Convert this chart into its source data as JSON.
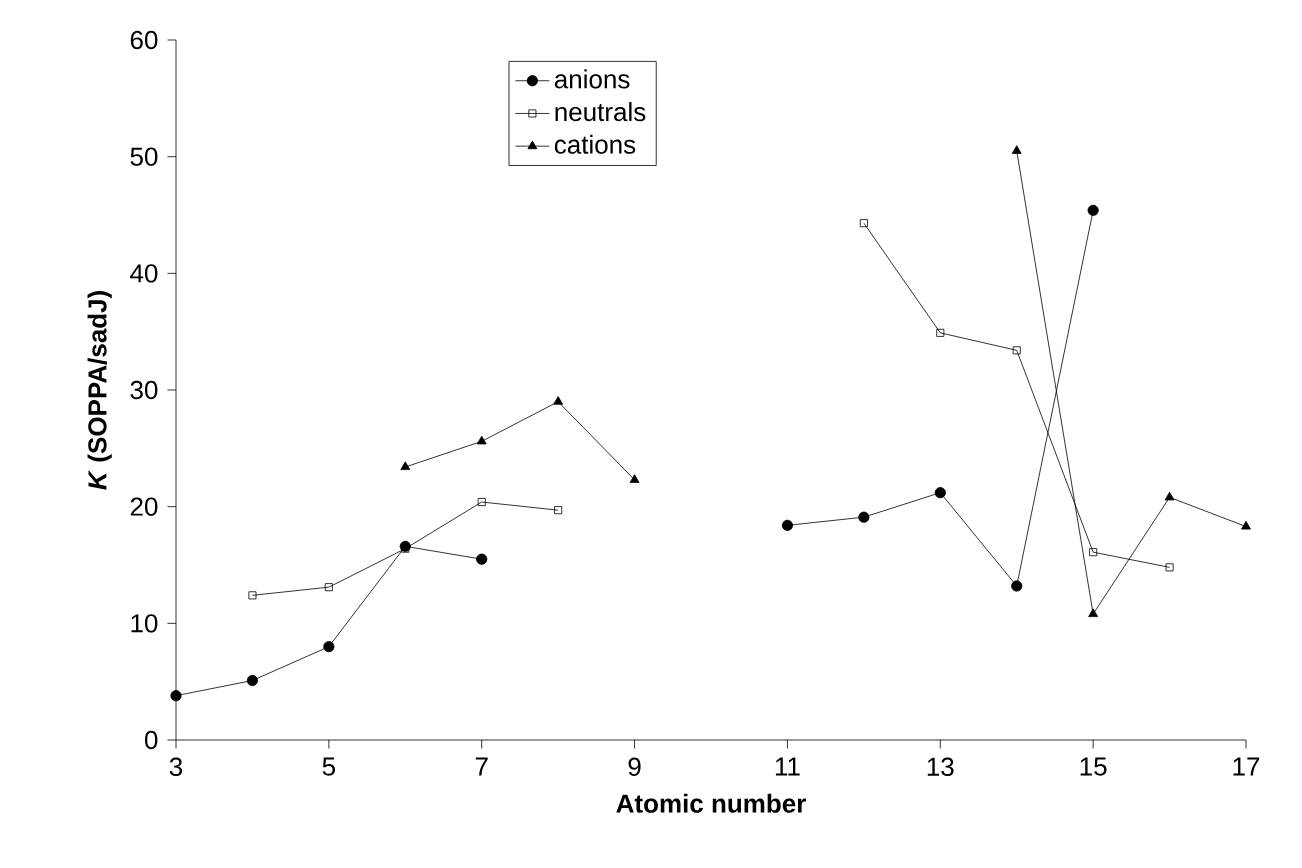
{
  "chart_data": {
    "type": "line",
    "xlabel": "Atomic number",
    "ylabel": "*K* (SOPPA/sadJ)",
    "x": [
      3,
      4,
      5,
      6,
      7,
      8,
      9,
      10,
      11,
      12,
      13,
      14,
      15,
      16,
      17
    ],
    "series": [
      {
        "name": "anions",
        "color": "#000000",
        "marker": "circle",
        "values": [
          3.8,
          5.1,
          8.0,
          16.6,
          15.5,
          null,
          null,
          null,
          18.4,
          19.1,
          21.2,
          13.2,
          45.4,
          null,
          null
        ]
      },
      {
        "name": "neutrals",
        "color": "#000000",
        "marker": "square",
        "values": [
          null,
          12.4,
          13.1,
          16.4,
          20.4,
          19.7,
          null,
          null,
          null,
          44.3,
          34.9,
          33.4,
          16.1,
          14.8,
          null
        ]
      },
      {
        "name": "cations",
        "color": "#000000",
        "marker": "triangle",
        "values": [
          null,
          null,
          null,
          23.4,
          25.6,
          29.0,
          22.3,
          null,
          null,
          null,
          null,
          50.5,
          10.8,
          20.8,
          18.3
        ]
      }
    ],
    "xlim": [
      3,
      17
    ],
    "xticks": [
      3,
      5,
      7,
      9,
      11,
      13,
      15,
      17
    ],
    "ylim": [
      0,
      60
    ],
    "yticks": [
      0,
      10,
      20,
      30,
      40,
      50,
      60
    ],
    "legend": "top",
    "grid": false,
    "line_style": "solid"
  }
}
